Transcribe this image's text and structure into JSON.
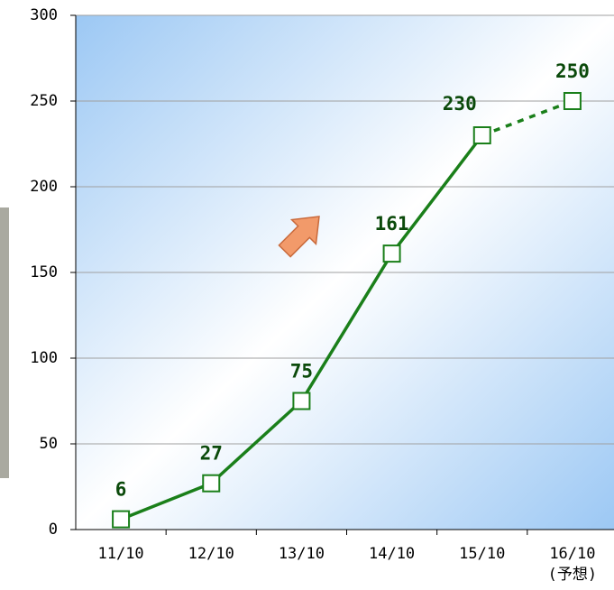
{
  "chart_data": {
    "type": "line",
    "categories": [
      "11/10",
      "12/10",
      "13/10",
      "14/10",
      "15/10",
      "16/10"
    ],
    "category_notes": [
      null,
      null,
      null,
      null,
      null,
      "(予想)"
    ],
    "series": [
      {
        "color": "#1a7f1a",
        "values": [
          6,
          27,
          75,
          161,
          230,
          250
        ],
        "segment_styles": [
          "solid",
          "solid",
          "solid",
          "solid",
          "dashed"
        ]
      }
    ],
    "ylim": [
      0,
      300
    ],
    "yticks": [
      0,
      50,
      100,
      150,
      200,
      250,
      300
    ],
    "grid": true
  }
}
